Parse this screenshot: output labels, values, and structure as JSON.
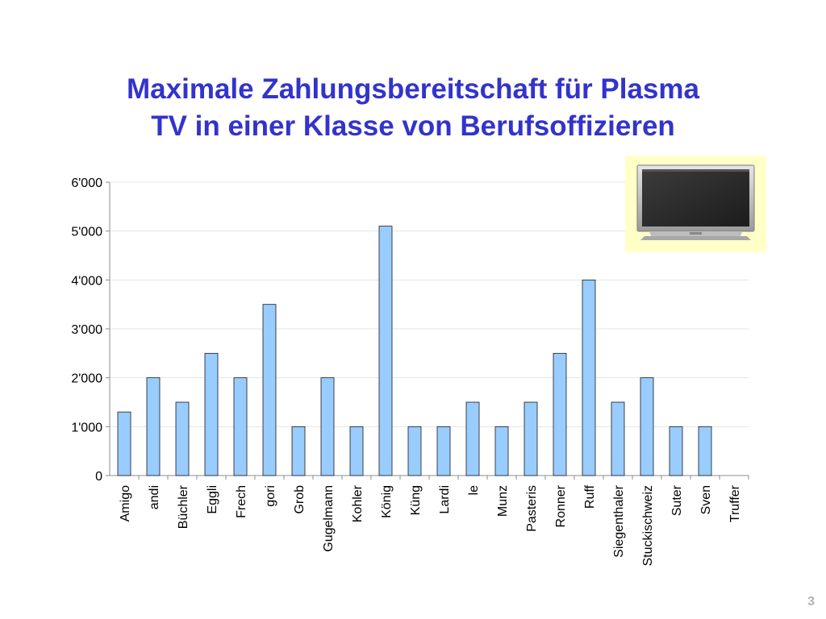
{
  "slide": {
    "title_line1": "Maximale Zahlungsbereitschaft für Plasma",
    "title_line2": "TV in einer Klasse von Berufsoffizieren",
    "page_number": "3"
  },
  "colors": {
    "title": "#3333cc",
    "bar_fill": "#99ccff",
    "bar_stroke": "#1a1a1a",
    "tv_panel_background": "#ffffc8",
    "page_number": "#b3b3b3"
  },
  "picture": {
    "icon": "plasma-tv-icon"
  },
  "chart_data": {
    "type": "bar",
    "categories": [
      "Amigo",
      "andi",
      "Büchler",
      "Eggli",
      "Frech",
      "gori",
      "Grob",
      "Gugelmann",
      "Kohler",
      "König",
      "Küng",
      "Lardi",
      "le",
      "Munz",
      "Pasteris",
      "Ronner",
      "Ruff",
      "Siegenthaler",
      "Stuckischweiz",
      "Suter",
      "Sven",
      "Truffer"
    ],
    "values": [
      1300,
      2000,
      1500,
      2500,
      2000,
      3500,
      1000,
      2000,
      1000,
      5100,
      1000,
      1000,
      1500,
      1000,
      1500,
      2500,
      4000,
      1500,
      2000,
      1000,
      1000,
      0
    ],
    "ylim": [
      0,
      6000
    ],
    "yticks": [
      0,
      1000,
      2000,
      3000,
      4000,
      5000,
      6000
    ],
    "ytick_labels": [
      "0",
      "1'000",
      "2'000",
      "3'000",
      "4'000",
      "5'000",
      "6'000"
    ],
    "xlabel": "",
    "ylabel": "",
    "grid": true,
    "legend": "none"
  }
}
